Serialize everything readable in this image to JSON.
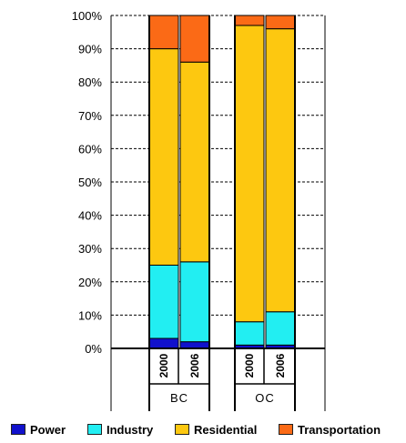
{
  "chart_data": {
    "type": "bar",
    "stacked": true,
    "percent": true,
    "groups": [
      "BC",
      "OC"
    ],
    "categories": [
      "2000",
      "2006",
      "2000",
      "2006"
    ],
    "category_groups": [
      "BC",
      "BC",
      "OC",
      "OC"
    ],
    "ylim": [
      0,
      100
    ],
    "yticks": [
      "0%",
      "10%",
      "20%",
      "30%",
      "40%",
      "50%",
      "60%",
      "70%",
      "80%",
      "90%",
      "100%"
    ],
    "grid": "dashed horizontal",
    "legend_position": "bottom",
    "series": [
      {
        "name": "Power",
        "color": "#1111cc",
        "values": [
          3,
          2,
          1,
          1
        ]
      },
      {
        "name": "Industry",
        "color": "#22eef2",
        "values": [
          22,
          24,
          7,
          10
        ]
      },
      {
        "name": "Residential",
        "color": "#fdc810",
        "values": [
          65,
          60,
          89,
          85
        ]
      },
      {
        "name": "Transportation",
        "color": "#fb6a16",
        "values": [
          10,
          14,
          3,
          4
        ]
      }
    ]
  }
}
